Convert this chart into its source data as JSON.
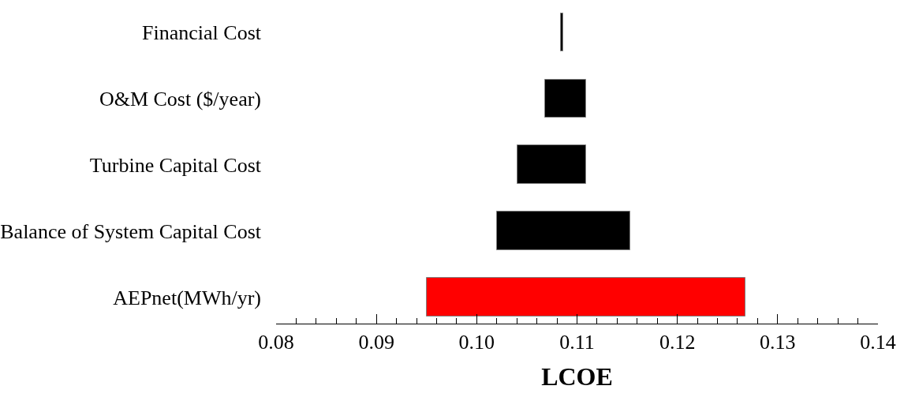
{
  "chart_data": {
    "type": "bar",
    "orientation": "horizontal",
    "xlabel": "LCOE",
    "categories": [
      "Financial Cost",
      "O&M Cost ($/year)",
      "Turbine Capital Cost",
      "Balance of System Capital Cost",
      "AEPnet(MWh/yr)"
    ],
    "base": [
      0.1084,
      0.1068,
      0.1041,
      0.102,
      0.095
    ],
    "values": [
      0.0002,
      0.0041,
      0.0068,
      0.0133,
      0.0318
    ],
    "colors": [
      "#000000",
      "#000000",
      "#000000",
      "#000000",
      "#ff0000"
    ],
    "xlim": [
      0.08,
      0.14
    ],
    "xticks": [
      {
        "value": 0.08,
        "label": "0.08"
      },
      {
        "value": 0.082,
        "label": null
      },
      {
        "value": 0.084,
        "label": null
      },
      {
        "value": 0.086,
        "label": null
      },
      {
        "value": 0.088,
        "label": null
      },
      {
        "value": 0.09,
        "label": "0.09"
      },
      {
        "value": 0.092,
        "label": null
      },
      {
        "value": 0.094,
        "label": null
      },
      {
        "value": 0.096,
        "label": null
      },
      {
        "value": 0.098,
        "label": null
      },
      {
        "value": 0.1,
        "label": "0.10"
      },
      {
        "value": 0.102,
        "label": null
      },
      {
        "value": 0.104,
        "label": null
      },
      {
        "value": 0.106,
        "label": null
      },
      {
        "value": 0.108,
        "label": null
      },
      {
        "value": 0.11,
        "label": "0.11"
      },
      {
        "value": 0.112,
        "label": null
      },
      {
        "value": 0.114,
        "label": null
      },
      {
        "value": 0.116,
        "label": null
      },
      {
        "value": 0.118,
        "label": null
      },
      {
        "value": 0.12,
        "label": "0.12"
      },
      {
        "value": 0.122,
        "label": null
      },
      {
        "value": 0.124,
        "label": null
      },
      {
        "value": 0.126,
        "label": null
      },
      {
        "value": 0.128,
        "label": null
      },
      {
        "value": 0.13,
        "label": "0.13"
      },
      {
        "value": 0.132,
        "label": null
      },
      {
        "value": 0.134,
        "label": null
      },
      {
        "value": 0.136,
        "label": null
      },
      {
        "value": 0.138,
        "label": null
      },
      {
        "value": 0.14,
        "label": "0.14"
      }
    ],
    "legend": false
  }
}
